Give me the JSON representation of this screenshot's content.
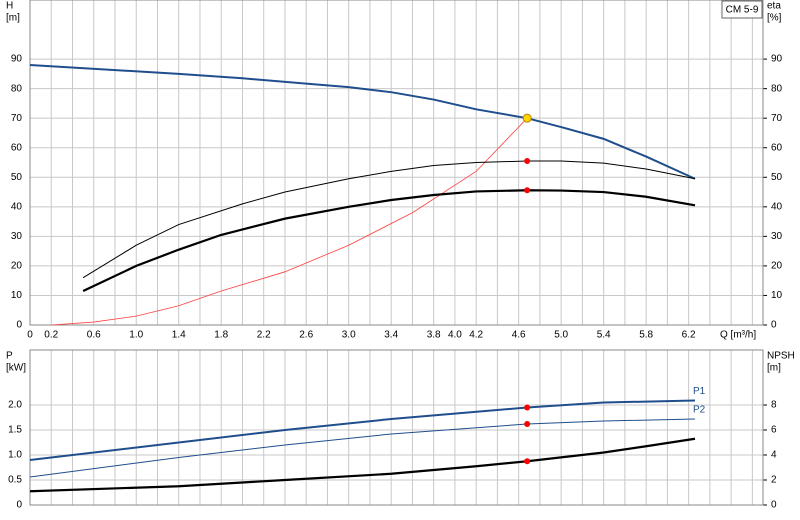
{
  "chart_data": [
    {
      "type": "line",
      "model": "CM 5-9",
      "y_label": [
        "H",
        "[m]"
      ],
      "y2_label": [
        "eta",
        "[%]"
      ],
      "x_label": "Q [m³/h]",
      "xlim": [
        0,
        6.9
      ],
      "ylim": [
        0,
        110
      ],
      "y2lim": [
        0,
        110
      ],
      "grid": true,
      "xticks": [
        0,
        0.2,
        0.6,
        {
          "value": 1,
          "label": "1.0"
        },
        1.4,
        1.8,
        2.2,
        2.6,
        {
          "value": 3,
          "label": "3.0"
        },
        3.4,
        3.8,
        {
          "value": 4,
          "label": "4.0"
        },
        4.2,
        4.6,
        {
          "value": 5,
          "label": "5.0"
        },
        5.4,
        5.8,
        6.2
      ],
      "x_minor_ticks": [
        0.4,
        0.8,
        1.2,
        1.6,
        2,
        2.4,
        2.8,
        3.2,
        3.6,
        4.4,
        4.8,
        5.2,
        5.6,
        6,
        6.4,
        6.6,
        6.8
      ],
      "yticks": [
        0,
        10,
        20,
        30,
        40,
        50,
        60,
        70,
        80,
        90
      ],
      "y2ticks": [
        0,
        10,
        20,
        30,
        40,
        50,
        60,
        70,
        80,
        90
      ],
      "series": [
        {
          "color": "#1f4e8c",
          "width": 2,
          "x": [
            0,
            1.4,
            2,
            2.6,
            3,
            3.4,
            3.8,
            4.2,
            4.68,
            5,
            5.4,
            5.8,
            6.26
          ],
          "values": [
            88,
            85,
            83.5,
            81.7,
            80.5,
            78.8,
            76.3,
            73,
            70,
            67,
            63,
            57,
            49.5
          ]
        },
        {
          "color": "#ff4040",
          "width": 0.8,
          "x": [
            0.2,
            0.6,
            1,
            1.4,
            1.8,
            2.4,
            3,
            3.6,
            4.2,
            4.68
          ],
          "values": [
            0,
            1,
            3,
            6.5,
            11.5,
            18,
            27,
            38,
            52,
            70
          ]
        },
        {
          "color": "#000000",
          "width": 1,
          "axis": "y2",
          "x": [
            0.5,
            1,
            1.4,
            2,
            2.4,
            3,
            3.4,
            3.8,
            4.2,
            4.68,
            5,
            5.4,
            5.8,
            6.26
          ],
          "values": [
            16,
            27,
            34,
            41,
            45,
            49.5,
            52,
            54,
            55,
            55.5,
            55.5,
            54.8,
            52.8,
            49.5
          ]
        },
        {
          "color": "#000000",
          "width": 2.2,
          "axis": "y2",
          "x": [
            0.5,
            1,
            1.4,
            1.8,
            2.4,
            3,
            3.4,
            3.8,
            4.2,
            4.68,
            5,
            5.4,
            5.8,
            6.26
          ],
          "values": [
            11.5,
            20,
            25.5,
            30.5,
            36,
            40,
            42.3,
            44,
            45.2,
            45.6,
            45.5,
            45,
            43.4,
            40.5
          ]
        },
        {
          "mode": "markers",
          "color": "#ffd700",
          "x": [
            4.68
          ],
          "values": [
            70
          ]
        },
        {
          "mode": "markers",
          "color": "#ff0000",
          "axis": "y2",
          "x": [
            4.68,
            4.68
          ],
          "values": [
            55.5,
            45.6
          ]
        }
      ]
    },
    {
      "type": "line",
      "y_label": [
        "P",
        "[kW]"
      ],
      "y2_label": [
        "NPSH",
        "[m]"
      ],
      "xlim": [
        0,
        6.9
      ],
      "ylim": [
        0,
        3.1
      ],
      "y2lim": [
        0,
        12.4
      ],
      "grid": true,
      "xticks": [
        0,
        0.2,
        0.6,
        1,
        1.4,
        1.8,
        2.2,
        2.6,
        3,
        3.4,
        3.8,
        4,
        4.2,
        4.6,
        5,
        5.4,
        5.8,
        6.2
      ],
      "x_minor_ticks": [
        0.4,
        0.8,
        1.2,
        1.6,
        2,
        2.4,
        2.8,
        3.2,
        3.6,
        4.4,
        4.8,
        5.2,
        5.6,
        6,
        6.4,
        6.6,
        6.8
      ],
      "yticks": [
        0,
        0.5,
        {
          "value": 1,
          "label": "1.0"
        },
        1.5,
        {
          "value": 2,
          "label": "2.0"
        }
      ],
      "y2ticks": [
        0,
        2,
        4,
        6,
        8
      ],
      "series": [
        {
          "name": "P1",
          "color": "#1f4e8c",
          "width": 2,
          "x": [
            0,
            1.4,
            2.4,
            3.4,
            4.68,
            5.4,
            6.26
          ],
          "values": [
            0.9,
            1.25,
            1.5,
            1.72,
            1.95,
            2.05,
            2.09
          ]
        },
        {
          "name": "P2",
          "color": "#1f4e8c",
          "width": 1,
          "x": [
            0,
            1.4,
            2.4,
            3.4,
            4.68,
            5.4,
            6.26
          ],
          "values": [
            0.56,
            0.95,
            1.2,
            1.42,
            1.62,
            1.68,
            1.72
          ]
        },
        {
          "color": "#000000",
          "width": 2.2,
          "axis": "y2",
          "x": [
            0,
            1.4,
            2.4,
            3.4,
            4.2,
            4.68,
            5.4,
            5.8,
            6.26
          ],
          "values": [
            1.1,
            1.5,
            2,
            2.5,
            3.1,
            3.5,
            4.2,
            4.7,
            5.3
          ]
        },
        {
          "mode": "markers",
          "color": "#ff0000",
          "x": [
            4.68,
            4.68
          ],
          "values": [
            1.95,
            1.62
          ]
        },
        {
          "mode": "markers",
          "color": "#ff0000",
          "axis": "y2",
          "x": [
            4.68
          ],
          "values": [
            3.5
          ]
        }
      ]
    }
  ]
}
